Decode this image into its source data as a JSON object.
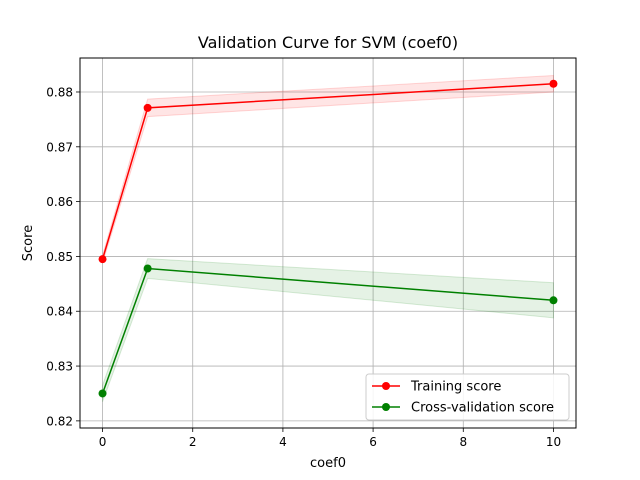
{
  "chart_data": {
    "type": "line",
    "title": "Validation Curve for SVM (coef0)",
    "xlabel": "coef0",
    "ylabel": "Score",
    "xlim": [
      -0.5,
      10.5
    ],
    "ylim": [
      0.8187,
      0.8862
    ],
    "xticks": [
      0,
      2,
      4,
      6,
      8,
      10
    ],
    "yticks": [
      0.82,
      0.83,
      0.84,
      0.85,
      0.86,
      0.87,
      0.88
    ],
    "grid": true,
    "legend_position": "lower-right",
    "x": [
      0,
      1,
      10
    ],
    "series": [
      {
        "name": "Training score",
        "color": "#ff0000",
        "values": [
          0.8495,
          0.8771,
          0.8815
        ],
        "band_lower": [
          0.8488,
          0.8755,
          0.88
        ],
        "band_upper": [
          0.8502,
          0.8787,
          0.883
        ]
      },
      {
        "name": "Cross-validation score",
        "color": "#008000",
        "values": [
          0.825,
          0.8478,
          0.842
        ],
        "band_lower": [
          0.8235,
          0.846,
          0.8388
        ],
        "band_upper": [
          0.8265,
          0.8496,
          0.8452
        ]
      }
    ]
  }
}
